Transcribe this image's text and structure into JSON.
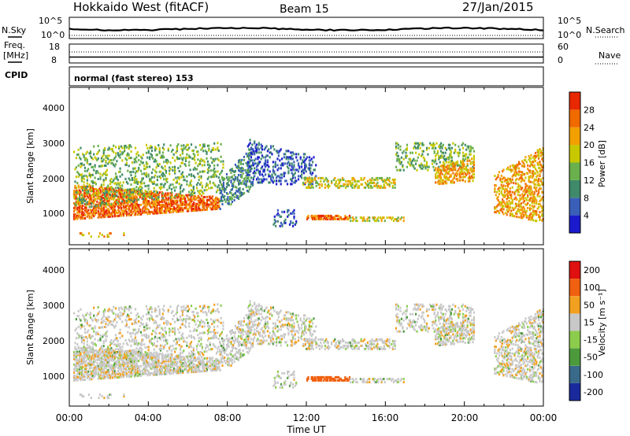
{
  "header": {
    "station": "Hokkaido West (fitACF)",
    "beam": "Beam 15",
    "date": "27/Jan/2015"
  },
  "summary": {
    "nsky_label": "N.Sky",
    "nsky_ticks": [
      "10^5",
      "10^0"
    ],
    "nsearch_label": "N.Search",
    "nsearch_ticks": [
      "10^5",
      "10^0"
    ],
    "freq_label": "Freq.",
    "freq_unit": "[MHz]",
    "freq_ticks": [
      "18",
      "8"
    ],
    "nave_label": "Nave",
    "nave_ticks": [
      "60",
      "0"
    ],
    "cpid_label": "CPID",
    "cpid_value": "normal (fast stereo) 153"
  },
  "chart_data": [
    {
      "type": "heatmap",
      "panel": "power",
      "ylabel": "Slant Range [km]",
      "yticks": [
        "1000",
        "2000",
        "3000",
        "4000"
      ],
      "ylim": [
        0,
        4500
      ],
      "xlim": [
        0,
        24
      ],
      "colorbar_label": "Power [dB]",
      "colorbar_ticks": [
        "4",
        "8",
        "12",
        "16",
        "20",
        "24",
        "28"
      ],
      "colorscale": [
        "#1a1acc",
        "#3a5fb8",
        "#3f8a6a",
        "#6ab04c",
        "#c8c800",
        "#f2a000",
        "#f06a00",
        "#e82800"
      ]
    },
    {
      "type": "heatmap",
      "panel": "velocity",
      "ylabel": "Slant Range [km]",
      "yticks": [
        "1000",
        "2000",
        "3000",
        "4000"
      ],
      "ylim": [
        0,
        4500
      ],
      "xlim": [
        0,
        24
      ],
      "colorbar_label": "Velocity [m s⁻¹]",
      "colorbar_ticks": [
        "200",
        "100",
        "50",
        "15",
        "-15",
        "-50",
        "-100",
        "-200"
      ],
      "colorscale": [
        "#1a2a9c",
        "#3a6a8a",
        "#4c9a3c",
        "#8ccc4c",
        "#c8c8c8",
        "#f2a020",
        "#f06010",
        "#e01010"
      ],
      "xticks": [
        "00:00",
        "04:00",
        "08:00",
        "12:00",
        "16:00",
        "20:00",
        "00:00"
      ],
      "xlabel": "Time UT"
    }
  ]
}
